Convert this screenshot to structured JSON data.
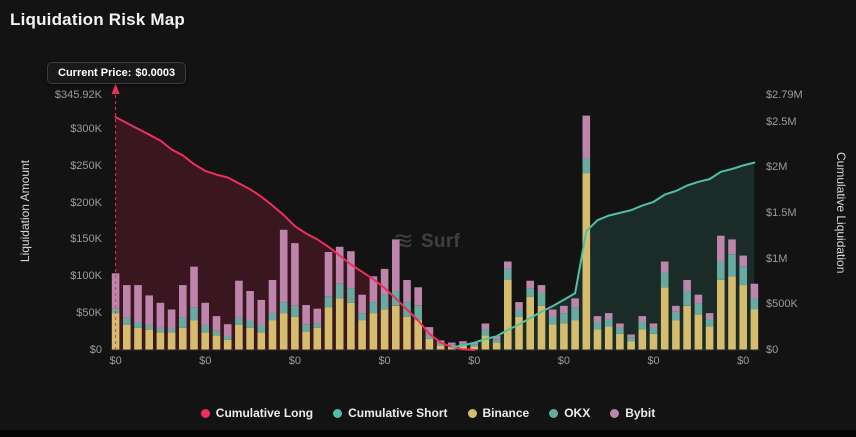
{
  "title": "Liquidation Risk Map",
  "tooltip": {
    "label": "Current Price:",
    "value": "$0.0003"
  },
  "watermark": "Surf",
  "colors": {
    "background": "#131313",
    "long": "#ee2f5d",
    "short": "#4fc0a8",
    "binance": "#d6bd6e",
    "okx": "#69aaa0",
    "bybit": "#bd85ab",
    "axis_text": "#9b9b9b"
  },
  "axes": {
    "left": {
      "title": "Liquidation Amount",
      "ticks": [
        {
          "label": "$345.92K",
          "value": 345.92
        },
        {
          "label": "$300K",
          "value": 300
        },
        {
          "label": "$250K",
          "value": 250
        },
        {
          "label": "$200K",
          "value": 200
        },
        {
          "label": "$150K",
          "value": 150
        },
        {
          "label": "$100K",
          "value": 100
        },
        {
          "label": "$50K",
          "value": 50
        },
        {
          "label": "$0",
          "value": 0
        }
      ]
    },
    "right": {
      "title": "Cumulative Liquidation",
      "ticks": [
        {
          "label": "$2.79M",
          "value": 2.79
        },
        {
          "label": "$2.5M",
          "value": 2.5
        },
        {
          "label": "$2M",
          "value": 2
        },
        {
          "label": "$1.5M",
          "value": 1.5
        },
        {
          "label": "$1M",
          "value": 1
        },
        {
          "label": "$500K",
          "value": 0.5
        },
        {
          "label": "$0",
          "value": 0
        }
      ]
    },
    "x": {
      "tick_label": "$0",
      "tick_indices": [
        0,
        8,
        16,
        24,
        32,
        40,
        48,
        56
      ]
    }
  },
  "legend": [
    {
      "label": "Cumulative Long",
      "color": "#ee2f5d"
    },
    {
      "label": "Cumulative Short",
      "color": "#4fc0a8"
    },
    {
      "label": "Binance",
      "color": "#d6bd6e"
    },
    {
      "label": "OKX",
      "color": "#69aaa0"
    },
    {
      "label": "Bybit",
      "color": "#bd85ab"
    }
  ],
  "chart_data": {
    "type": "mixed-stacked-bar-line",
    "title": "Liquidation Risk Map",
    "left_axis_label": "Liquidation Amount",
    "right_axis_label": "Cumulative Liquidation",
    "left_axis_max_k": 345.92,
    "right_axis_max_m": 2.79,
    "x_tick_label": "$0",
    "current_price": {
      "index": 0,
      "label": "$0.0003"
    },
    "stacked_bars": {
      "unit": "$K",
      "series": [
        {
          "name": "Binance",
          "color": "#d6bd6e",
          "values": [
            50,
            34,
            30,
            28,
            24,
            24,
            30,
            40,
            24,
            20,
            14,
            34,
            30,
            24,
            40,
            50,
            45,
            25,
            30,
            58,
            70,
            64,
            40,
            50,
            55,
            60,
            45,
            40,
            15,
            6,
            5,
            6,
            5,
            20,
            10,
            95,
            45,
            72,
            60,
            35,
            36,
            40,
            240,
            28,
            32,
            22,
            12,
            28,
            22,
            85,
            40,
            60,
            48,
            32,
            95,
            100,
            88,
            55
          ]
        },
        {
          "name": "OKX",
          "color": "#69aaa0",
          "values": [
            6,
            10,
            8,
            6,
            6,
            5,
            14,
            18,
            10,
            6,
            5,
            10,
            10,
            10,
            10,
            15,
            15,
            10,
            6,
            15,
            20,
            20,
            10,
            15,
            20,
            20,
            20,
            20,
            6,
            3,
            2,
            3,
            2,
            8,
            4,
            15,
            10,
            12,
            18,
            10,
            14,
            18,
            20,
            10,
            10,
            8,
            5,
            10,
            8,
            20,
            12,
            20,
            15,
            10,
            25,
            30,
            25,
            15
          ]
        },
        {
          "name": "Bybit",
          "color": "#bd85ab",
          "values": [
            48,
            44,
            50,
            40,
            34,
            26,
            44,
            55,
            30,
            20,
            16,
            50,
            40,
            34,
            45,
            98,
            85,
            26,
            20,
            60,
            50,
            50,
            25,
            35,
            35,
            70,
            30,
            25,
            10,
            4,
            3,
            3,
            3,
            8,
            5,
            10,
            10,
            10,
            10,
            10,
            10,
            12,
            58,
            8,
            8,
            6,
            4,
            8,
            6,
            15,
            8,
            15,
            12,
            8,
            35,
            20,
            15,
            20
          ]
        }
      ]
    },
    "lines": [
      {
        "name": "Cumulative Long",
        "axis": "left",
        "unit": "$K",
        "color": "#ee2f5d",
        "fill": "rgba(238,47,93,0.18)",
        "values": [
          316,
          308,
          300,
          292,
          284,
          272,
          264,
          252,
          243,
          238,
          234,
          226,
          218,
          208,
          196,
          183,
          168,
          158,
          150,
          140,
          128,
          116,
          106,
          96,
          84,
          70,
          55,
          40,
          22,
          10,
          4,
          1,
          0,
          null,
          null,
          null,
          null,
          null,
          null,
          null,
          null,
          null,
          null,
          null,
          null,
          null,
          null,
          null,
          null,
          null,
          null,
          null,
          null,
          null,
          null,
          null,
          null,
          null
        ]
      },
      {
        "name": "Cumulative Short",
        "axis": "right",
        "unit": "$M",
        "color": "#4fc0a8",
        "fill": "rgba(79,192,168,0.14)",
        "values": [
          null,
          null,
          null,
          null,
          null,
          null,
          null,
          null,
          null,
          null,
          null,
          null,
          null,
          null,
          null,
          null,
          null,
          null,
          null,
          null,
          null,
          null,
          null,
          null,
          null,
          null,
          null,
          null,
          null,
          null,
          0.03,
          0.05,
          0.08,
          0.12,
          0.15,
          0.22,
          0.28,
          0.35,
          0.42,
          0.48,
          0.55,
          0.62,
          1.3,
          1.42,
          1.47,
          1.5,
          1.53,
          1.58,
          1.62,
          1.7,
          1.74,
          1.8,
          1.84,
          1.87,
          1.95,
          1.98,
          2.02,
          2.05
        ]
      }
    ]
  }
}
